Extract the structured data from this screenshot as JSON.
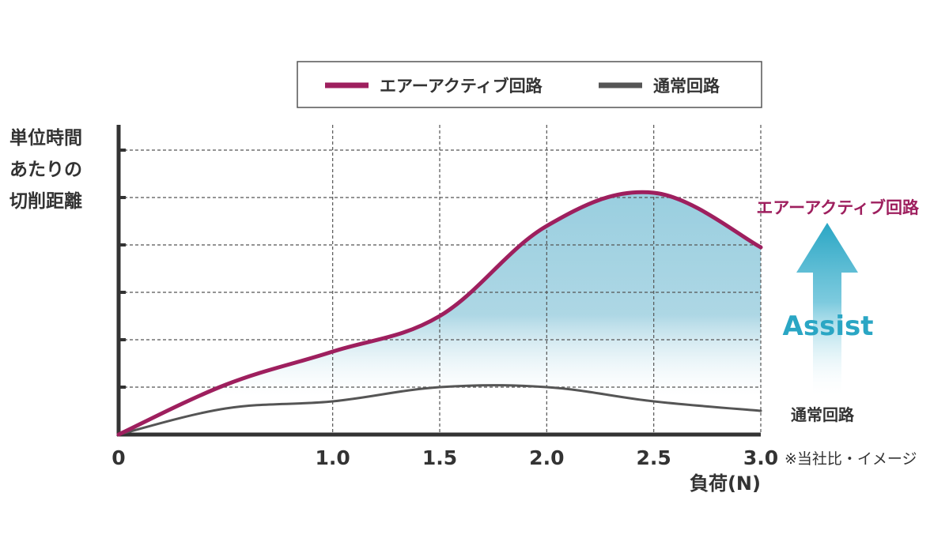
{
  "chart_data": {
    "type": "line",
    "title": "",
    "xlabel": "負荷(N)",
    "ylabel": "単位時間あたりの切削距離",
    "ylabel_lines": [
      "単位時間",
      "あたりの",
      "切削距離"
    ],
    "xlim": [
      0,
      3.0
    ],
    "ylim": [
      0,
      6
    ],
    "x_ticks": [
      0,
      1.0,
      1.5,
      2.0,
      2.5,
      3.0
    ],
    "x_tick_labels": [
      "0",
      "1.0",
      "1.5",
      "2.0",
      "2.5",
      "3.0"
    ],
    "y_gridlines": [
      1,
      2,
      3,
      4,
      5,
      6
    ],
    "grid": true,
    "legend_position": "top-center",
    "series": [
      {
        "name": "エアーアクティブ回路",
        "color": "#9e1f5e",
        "x": [
          0,
          0.5,
          1.0,
          1.5,
          2.0,
          2.5,
          3.0
        ],
        "y": [
          0,
          1.05,
          1.75,
          2.5,
          4.4,
          5.1,
          3.95
        ]
      },
      {
        "name": "通常回路",
        "color": "#555555",
        "x": [
          0,
          0.5,
          1.0,
          1.5,
          2.0,
          2.5,
          3.0
        ],
        "y": [
          0,
          0.55,
          0.7,
          1.0,
          1.0,
          0.7,
          0.5
        ]
      }
    ],
    "annotations": {
      "air_label": "エアーアクティブ回路",
      "normal_label": "通常回路",
      "assist": "Assist",
      "note": "※当社比・イメージ"
    },
    "colors": {
      "fill": "#8ec9dc",
      "arrow": "#2aa6c4",
      "axis": "#333333",
      "grid": "#555555"
    }
  }
}
